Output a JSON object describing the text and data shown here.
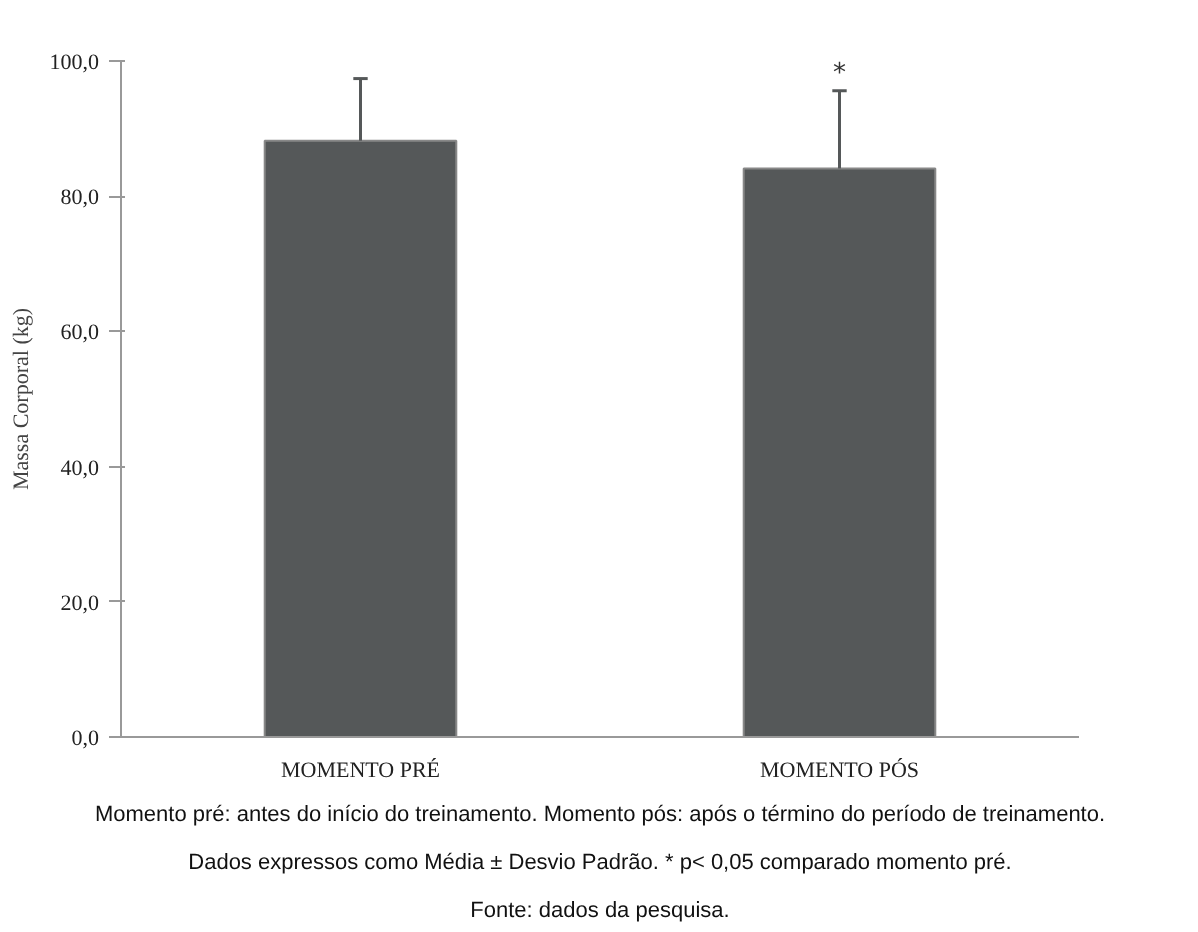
{
  "chart_data": {
    "type": "bar",
    "ylabel": "Massa Corporal (kg)",
    "categories": [
      "MOMENTO PRÉ",
      "MOMENTO PÓS"
    ],
    "values": [
      88.2,
      84.1
    ],
    "errors": [
      9.2,
      11.5
    ],
    "color": "#555859",
    "ylim": [
      0,
      100
    ],
    "yticks": [
      {
        "value": 0,
        "label": "0,0"
      },
      {
        "value": 20,
        "label": "20,0"
      },
      {
        "value": 40,
        "label": "40,0"
      },
      {
        "value": 60,
        "label": "60,0"
      },
      {
        "value": 80,
        "label": "80,0"
      },
      {
        "value": 100,
        "label": "100,0"
      }
    ],
    "grid": false,
    "annotations": [
      {
        "text": "*",
        "x": "MOMENTO PÓS",
        "y": 95.6
      },
      "Momento pré: antes do início do treinamento. Momento pós: após o término do período de treinamento.",
      "Dados expressos como Média ± Desvio Padrão. * p< 0,05 comparado momento pré.",
      "Fonte: dados da pesquisa."
    ]
  }
}
